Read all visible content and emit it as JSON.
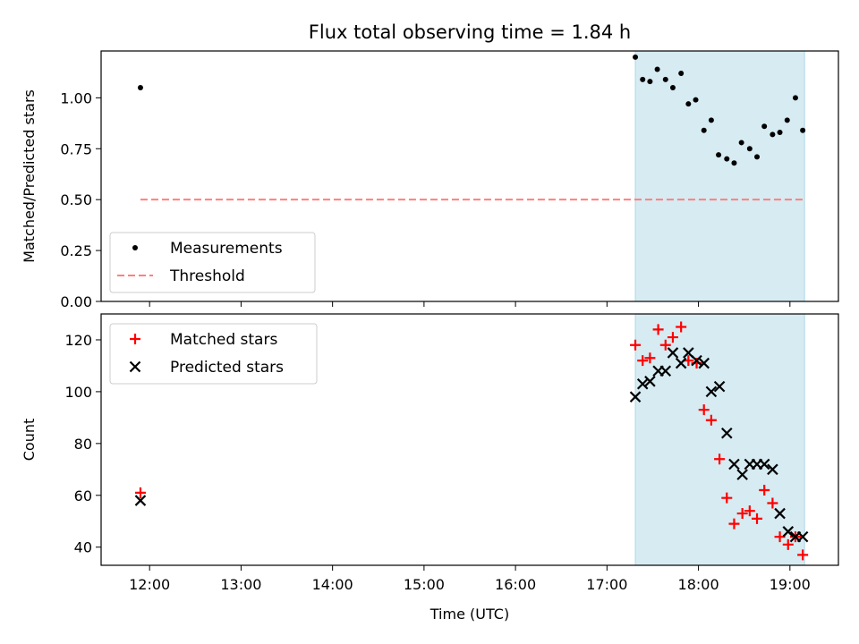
{
  "title": "Flux total observing time = 1.84 h",
  "colors": {
    "shade": "#add8e6",
    "measurement": "#000000",
    "threshold": "#ff7f7f",
    "matched": "#ff0000",
    "predicted": "#000000"
  },
  "chart_data": [
    {
      "type": "scatter",
      "ylabel": "Matched/Predicted stars",
      "ylim": [
        0,
        1.23
      ],
      "yticks": [
        0,
        0.25,
        0.5,
        0.75,
        1.0
      ],
      "ytick_labels": [
        "0.00",
        "0.25",
        "0.50",
        "0.75",
        "1.00"
      ],
      "xlim": [
        11.47,
        19.53
      ],
      "shaded_span": [
        17.31,
        19.16
      ],
      "legend_position": "lower-left",
      "series": [
        {
          "name": "Measurements",
          "marker": "dot",
          "x": [
            11.9,
            17.31,
            17.39,
            17.47,
            17.55,
            17.64,
            17.72,
            17.81,
            17.89,
            17.97,
            18.06,
            18.14,
            18.22,
            18.31,
            18.39,
            18.47,
            18.56,
            18.64,
            18.72,
            18.81,
            18.89,
            18.97,
            19.06,
            19.14
          ],
          "y": [
            1.05,
            1.2,
            1.09,
            1.08,
            1.14,
            1.09,
            1.05,
            1.12,
            0.97,
            0.99,
            0.84,
            0.89,
            0.72,
            0.7,
            0.68,
            0.78,
            0.75,
            0.71,
            0.86,
            0.82,
            0.83,
            0.89,
            1.0,
            0.84
          ]
        },
        {
          "name": "Threshold",
          "style": "dashed",
          "x": [
            11.9,
            19.14
          ],
          "y": [
            0.5,
            0.5
          ]
        }
      ]
    },
    {
      "type": "scatter",
      "ylabel": "Count",
      "xlabel": "Time (UTC)",
      "ylim": [
        33,
        130
      ],
      "yticks": [
        40,
        60,
        80,
        100,
        120
      ],
      "ytick_labels": [
        "40",
        "60",
        "80",
        "100",
        "120"
      ],
      "xlim": [
        11.47,
        19.53
      ],
      "xticks": [
        12,
        13,
        14,
        15,
        16,
        17,
        18,
        19
      ],
      "xtick_labels": [
        "12:00",
        "13:00",
        "14:00",
        "15:00",
        "16:00",
        "17:00",
        "18:00",
        "19:00"
      ],
      "shaded_span": [
        17.31,
        19.16
      ],
      "legend_position": "upper-left",
      "series": [
        {
          "name": "Matched stars",
          "marker": "plus",
          "x": [
            11.9,
            17.31,
            17.39,
            17.47,
            17.56,
            17.64,
            17.72,
            17.81,
            17.89,
            17.98,
            18.06,
            18.14,
            18.23,
            18.31,
            18.39,
            18.48,
            18.56,
            18.64,
            18.72,
            18.81,
            18.89,
            18.98,
            19.06,
            19.14
          ],
          "y": [
            61,
            118,
            112,
            113,
            124,
            118,
            121,
            125,
            112,
            111,
            93,
            89,
            74,
            59,
            49,
            53,
            54,
            51,
            62,
            57,
            44,
            41,
            44,
            37
          ]
        },
        {
          "name": "Predicted stars",
          "marker": "x",
          "x": [
            11.9,
            17.31,
            17.39,
            17.47,
            17.56,
            17.64,
            17.72,
            17.81,
            17.89,
            17.98,
            18.06,
            18.14,
            18.23,
            18.31,
            18.39,
            18.48,
            18.56,
            18.64,
            18.72,
            18.81,
            18.89,
            18.98,
            19.06,
            19.14
          ],
          "y": [
            58,
            98,
            103,
            104,
            108,
            108,
            115,
            111,
            115,
            112,
            111,
            100,
            102,
            84,
            72,
            68,
            72,
            72,
            72,
            70,
            53,
            46,
            44,
            44
          ]
        }
      ]
    }
  ]
}
